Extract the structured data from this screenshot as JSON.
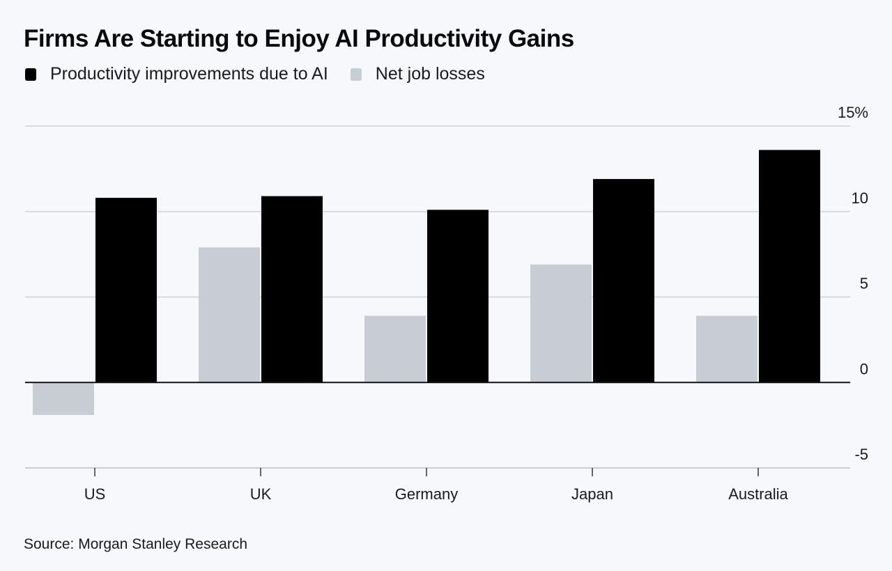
{
  "title": "Firms Are Starting to Enjoy AI Productivity Gains",
  "source": "Source: Morgan Stanley Research",
  "colors": {
    "productivity": "#000000",
    "job_losses": "#c8ccd4",
    "gridline": "#cfd2d6",
    "zero_line": "#111111",
    "background": "#f6f8fb"
  },
  "legend": [
    {
      "label": "Productivity improvements due to AI",
      "series": "productivity"
    },
    {
      "label": "Net job losses",
      "series": "job_losses"
    }
  ],
  "chart_data": {
    "type": "bar",
    "title": "Firms Are Starting to Enjoy AI Productivity Gains",
    "xlabel": "",
    "ylabel": "",
    "categories": [
      "US",
      "UK",
      "Germany",
      "Japan",
      "Australia"
    ],
    "series": [
      {
        "name": "Net job losses",
        "key": "job_losses",
        "values": [
          -1.9,
          7.9,
          3.9,
          6.9,
          3.9
        ]
      },
      {
        "name": "Productivity improvements due to AI",
        "key": "productivity",
        "values": [
          10.8,
          10.9,
          10.1,
          11.9,
          13.6
        ]
      }
    ],
    "ylim": [
      -5,
      15
    ],
    "yticks": [
      15,
      10,
      5,
      0,
      -5
    ],
    "ytick_labels": [
      "15%",
      "10",
      "5",
      "0",
      "-5"
    ],
    "y_axis_position": "right",
    "grid": true,
    "legend_position": "top-left",
    "source": "Source: Morgan Stanley Research"
  }
}
